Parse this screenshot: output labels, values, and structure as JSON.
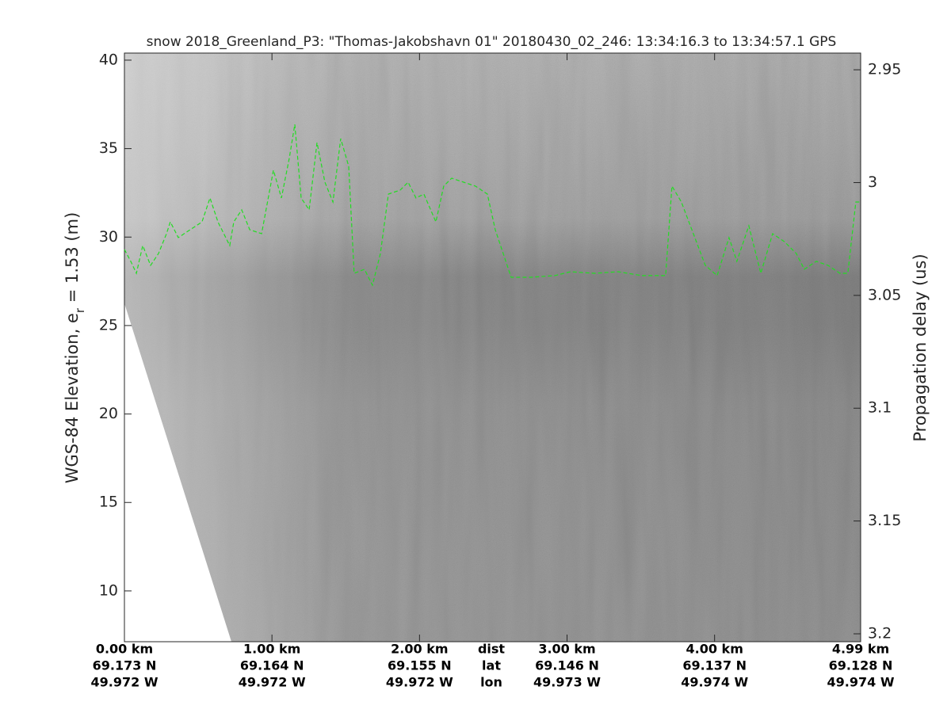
{
  "chart_data": {
    "type": "line",
    "title": "snow 2018_Greenland_P3: \"Thomas-Jakobshavn 01\"  20180430_02_246: 13:34:16.3 to 13:34:57.1 GPS",
    "ylabel_parts": [
      "WGS-84 Elevation, e",
      "r",
      " = 1.53 (m)"
    ],
    "y2label": "Propagation delay (us)",
    "xlim": [
      0,
      4.99
    ],
    "xticks": [
      {
        "value": 0,
        "label": "0.00 km"
      },
      {
        "value": 1,
        "label": "1.00 km"
      },
      {
        "value": 2,
        "label": "2.00 km"
      },
      {
        "value": 3,
        "label": "3.00 km"
      },
      {
        "value": 4,
        "label": "4.00 km"
      },
      {
        "value": 4.99,
        "label": "4.99 km"
      }
    ],
    "xtick_lat": [
      "69.173 N",
      "69.164 N",
      "69.155 N",
      "69.146 N",
      "69.137 N",
      "69.128 N"
    ],
    "xtick_lon": [
      "49.972 W",
      "49.972 W",
      "49.972 W",
      "49.973 W",
      "49.974 W",
      "49.974 W"
    ],
    "row_labels": [
      "dist",
      "lat",
      "lon"
    ],
    "ylim": [
      7.13,
      40.4
    ],
    "yticks": [
      10,
      15,
      20,
      25,
      30,
      35,
      40
    ],
    "y2lim": [
      3.2035,
      2.9426
    ],
    "y2ticks": [
      2.95,
      3,
      3.05,
      3.1,
      3.15,
      3.2
    ],
    "series": [
      {
        "color": "#22dd22",
        "dashed": true,
        "x": [
          0,
          0.043,
          0.081,
          0.124,
          0.177,
          0.231,
          0.285,
          0.311,
          0.365,
          0.446,
          0.526,
          0.58,
          0.634,
          0.714,
          0.741,
          0.795,
          0.849,
          0.93,
          1.01,
          1.064,
          1.117,
          1.155,
          1.198,
          1.252,
          1.305,
          1.359,
          1.413,
          1.466,
          1.52,
          1.557,
          1.627,
          1.681,
          1.735,
          1.789,
          1.869,
          1.923,
          1.976,
          2.03,
          2.111,
          2.164,
          2.218,
          2.299,
          2.379,
          2.46,
          2.513,
          2.621,
          2.755,
          2.916,
          3.024,
          3.185,
          3.346,
          3.507,
          3.668,
          3.711,
          3.775,
          3.856,
          3.937,
          4.017,
          4.098,
          4.151,
          4.232,
          4.313,
          4.393,
          4.474,
          4.554,
          4.608,
          4.689,
          4.769,
          4.85,
          4.903,
          4.957,
          4.989
        ],
        "values": [
          29.3,
          28.63,
          27.95,
          29.52,
          28.4,
          29.07,
          30.19,
          30.86,
          29.97,
          30.42,
          30.86,
          32.21,
          30.86,
          29.52,
          30.86,
          31.54,
          30.42,
          30.19,
          33.78,
          32.21,
          34.45,
          36.37,
          32.21,
          31.54,
          35.34,
          33.1,
          31.98,
          35.57,
          34.0,
          27.95,
          28.18,
          27.28,
          29.07,
          32.43,
          32.66,
          33.1,
          32.21,
          32.43,
          30.86,
          32.88,
          33.33,
          33.1,
          32.88,
          32.43,
          30.42,
          27.73,
          27.73,
          27.82,
          28.04,
          27.95,
          28.04,
          27.82,
          27.82,
          32.88,
          31.98,
          30.19,
          28.4,
          27.82,
          29.97,
          28.63,
          30.64,
          27.95,
          30.19,
          29.74,
          29.07,
          28.18,
          28.63,
          28.4,
          27.95,
          27.95,
          31.98,
          31.98
        ]
      }
    ]
  }
}
